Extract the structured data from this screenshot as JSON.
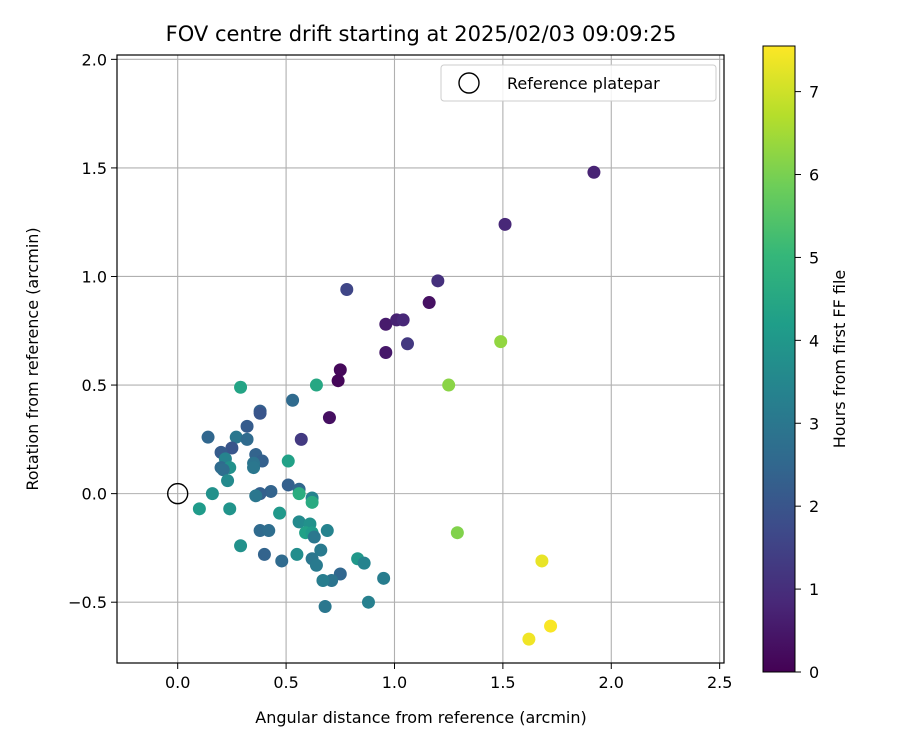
{
  "chart_data": {
    "type": "scatter",
    "title": "FOV centre drift starting at 2025/02/03 09:09:25",
    "xlabel": "Angular distance from reference (arcmin)",
    "ylabel": "Rotation from reference (arcmin)",
    "xlim": [
      -0.28,
      2.52
    ],
    "ylim": [
      -0.78,
      2.02
    ],
    "xticks": [
      0.0,
      0.5,
      1.0,
      1.5,
      2.0,
      2.5
    ],
    "xtick_labels": [
      "0.0",
      "0.5",
      "1.0",
      "1.5",
      "2.0",
      "2.5"
    ],
    "yticks": [
      -0.5,
      0.0,
      0.5,
      1.0,
      1.5,
      2.0
    ],
    "ytick_labels": [
      "−0.5",
      "0.0",
      "0.5",
      "1.0",
      "1.5",
      "2.0"
    ],
    "grid": true,
    "legend": {
      "placement": "upper-right",
      "entries": [
        {
          "label": "Reference platepar",
          "marker": "open-circle"
        }
      ]
    },
    "reference_point": {
      "x": 0.0,
      "y": 0.0
    },
    "colorbar": {
      "label": "Hours from first FF file",
      "colormap": "viridis",
      "range": [
        0,
        7.55
      ],
      "ticks": [
        0,
        1,
        2,
        3,
        4,
        5,
        6,
        7
      ],
      "tick_labels": [
        "0",
        "1",
        "2",
        "3",
        "4",
        "5",
        "6",
        "7"
      ]
    },
    "points": [
      {
        "x": 1.92,
        "y": 1.48,
        "hours": 0.75
      },
      {
        "x": 1.51,
        "y": 1.24,
        "hours": 0.85
      },
      {
        "x": 1.2,
        "y": 0.98,
        "hours": 1.05
      },
      {
        "x": 1.16,
        "y": 0.88,
        "hours": 0.35
      },
      {
        "x": 0.78,
        "y": 0.94,
        "hours": 1.6
      },
      {
        "x": 0.96,
        "y": 0.78,
        "hours": 0.55
      },
      {
        "x": 1.01,
        "y": 0.8,
        "hours": 0.7
      },
      {
        "x": 1.04,
        "y": 0.8,
        "hours": 0.85
      },
      {
        "x": 1.06,
        "y": 0.69,
        "hours": 1.25
      },
      {
        "x": 0.96,
        "y": 0.65,
        "hours": 0.5
      },
      {
        "x": 0.75,
        "y": 0.57,
        "hours": 0.15
      },
      {
        "x": 0.74,
        "y": 0.52,
        "hours": 0.1
      },
      {
        "x": 0.7,
        "y": 0.35,
        "hours": 0.3
      },
      {
        "x": 0.57,
        "y": 0.25,
        "hours": 1.3
      },
      {
        "x": 1.49,
        "y": 0.7,
        "hours": 6.3
      },
      {
        "x": 1.25,
        "y": 0.5,
        "hours": 6.2
      },
      {
        "x": 1.29,
        "y": -0.18,
        "hours": 6.1
      },
      {
        "x": 1.68,
        "y": -0.31,
        "hours": 7.3
      },
      {
        "x": 1.62,
        "y": -0.67,
        "hours": 7.4
      },
      {
        "x": 1.72,
        "y": -0.61,
        "hours": 7.5
      },
      {
        "x": 0.29,
        "y": 0.49,
        "hours": 4.4
      },
      {
        "x": 0.64,
        "y": 0.5,
        "hours": 4.5
      },
      {
        "x": 0.53,
        "y": 0.43,
        "hours": 2.6
      },
      {
        "x": 0.38,
        "y": 0.38,
        "hours": 2.3
      },
      {
        "x": 0.38,
        "y": 0.37,
        "hours": 2.0
      },
      {
        "x": 0.32,
        "y": 0.31,
        "hours": 2.2
      },
      {
        "x": 0.14,
        "y": 0.26,
        "hours": 2.5
      },
      {
        "x": 0.27,
        "y": 0.26,
        "hours": 3.0
      },
      {
        "x": 0.32,
        "y": 0.25,
        "hours": 2.6
      },
      {
        "x": 0.25,
        "y": 0.21,
        "hours": 2.0
      },
      {
        "x": 0.2,
        "y": 0.19,
        "hours": 2.2
      },
      {
        "x": 0.36,
        "y": 0.18,
        "hours": 2.4
      },
      {
        "x": 0.39,
        "y": 0.15,
        "hours": 2.3
      },
      {
        "x": 0.35,
        "y": 0.14,
        "hours": 2.9
      },
      {
        "x": 0.22,
        "y": 0.16,
        "hours": 3.4
      },
      {
        "x": 0.2,
        "y": 0.12,
        "hours": 2.6
      },
      {
        "x": 0.24,
        "y": 0.12,
        "hours": 3.8
      },
      {
        "x": 0.21,
        "y": 0.11,
        "hours": 2.7
      },
      {
        "x": 0.35,
        "y": 0.12,
        "hours": 3.0
      },
      {
        "x": 0.51,
        "y": 0.15,
        "hours": 4.3
      },
      {
        "x": 0.23,
        "y": 0.06,
        "hours": 3.6
      },
      {
        "x": 0.51,
        "y": 0.04,
        "hours": 2.3
      },
      {
        "x": 0.56,
        "y": 0.02,
        "hours": 2.5
      },
      {
        "x": 0.43,
        "y": 0.01,
        "hours": 2.4
      },
      {
        "x": 0.38,
        "y": 0.0,
        "hours": 2.3
      },
      {
        "x": 0.36,
        "y": -0.01,
        "hours": 3.0
      },
      {
        "x": 0.16,
        "y": 0.0,
        "hours": 3.8
      },
      {
        "x": 0.56,
        "y": 0.0,
        "hours": 4.7
      },
      {
        "x": 0.62,
        "y": -0.02,
        "hours": 3.4
      },
      {
        "x": 0.62,
        "y": -0.04,
        "hours": 4.6
      },
      {
        "x": 0.1,
        "y": -0.07,
        "hours": 4.1
      },
      {
        "x": 0.24,
        "y": -0.07,
        "hours": 3.9
      },
      {
        "x": 0.47,
        "y": -0.09,
        "hours": 4.0
      },
      {
        "x": 0.56,
        "y": -0.13,
        "hours": 3.6
      },
      {
        "x": 0.61,
        "y": -0.14,
        "hours": 3.8
      },
      {
        "x": 0.38,
        "y": -0.17,
        "hours": 2.6
      },
      {
        "x": 0.42,
        "y": -0.17,
        "hours": 2.7
      },
      {
        "x": 0.59,
        "y": -0.18,
        "hours": 4.3
      },
      {
        "x": 0.62,
        "y": -0.18,
        "hours": 4.1
      },
      {
        "x": 0.69,
        "y": -0.17,
        "hours": 3.4
      },
      {
        "x": 0.63,
        "y": -0.2,
        "hours": 3.0
      },
      {
        "x": 0.29,
        "y": -0.24,
        "hours": 3.8
      },
      {
        "x": 0.66,
        "y": -0.26,
        "hours": 3.1
      },
      {
        "x": 0.55,
        "y": -0.28,
        "hours": 3.7
      },
      {
        "x": 0.4,
        "y": -0.28,
        "hours": 2.4
      },
      {
        "x": 0.48,
        "y": -0.31,
        "hours": 2.6
      },
      {
        "x": 0.62,
        "y": -0.3,
        "hours": 3.0
      },
      {
        "x": 0.64,
        "y": -0.33,
        "hours": 3.1
      },
      {
        "x": 0.83,
        "y": -0.3,
        "hours": 4.0
      },
      {
        "x": 0.86,
        "y": -0.32,
        "hours": 3.4
      },
      {
        "x": 0.75,
        "y": -0.37,
        "hours": 2.5
      },
      {
        "x": 0.71,
        "y": -0.4,
        "hours": 2.9
      },
      {
        "x": 0.67,
        "y": -0.4,
        "hours": 3.2
      },
      {
        "x": 0.95,
        "y": -0.39,
        "hours": 3.2
      },
      {
        "x": 0.88,
        "y": -0.5,
        "hours": 3.3
      },
      {
        "x": 0.68,
        "y": -0.52,
        "hours": 3.0
      }
    ]
  }
}
